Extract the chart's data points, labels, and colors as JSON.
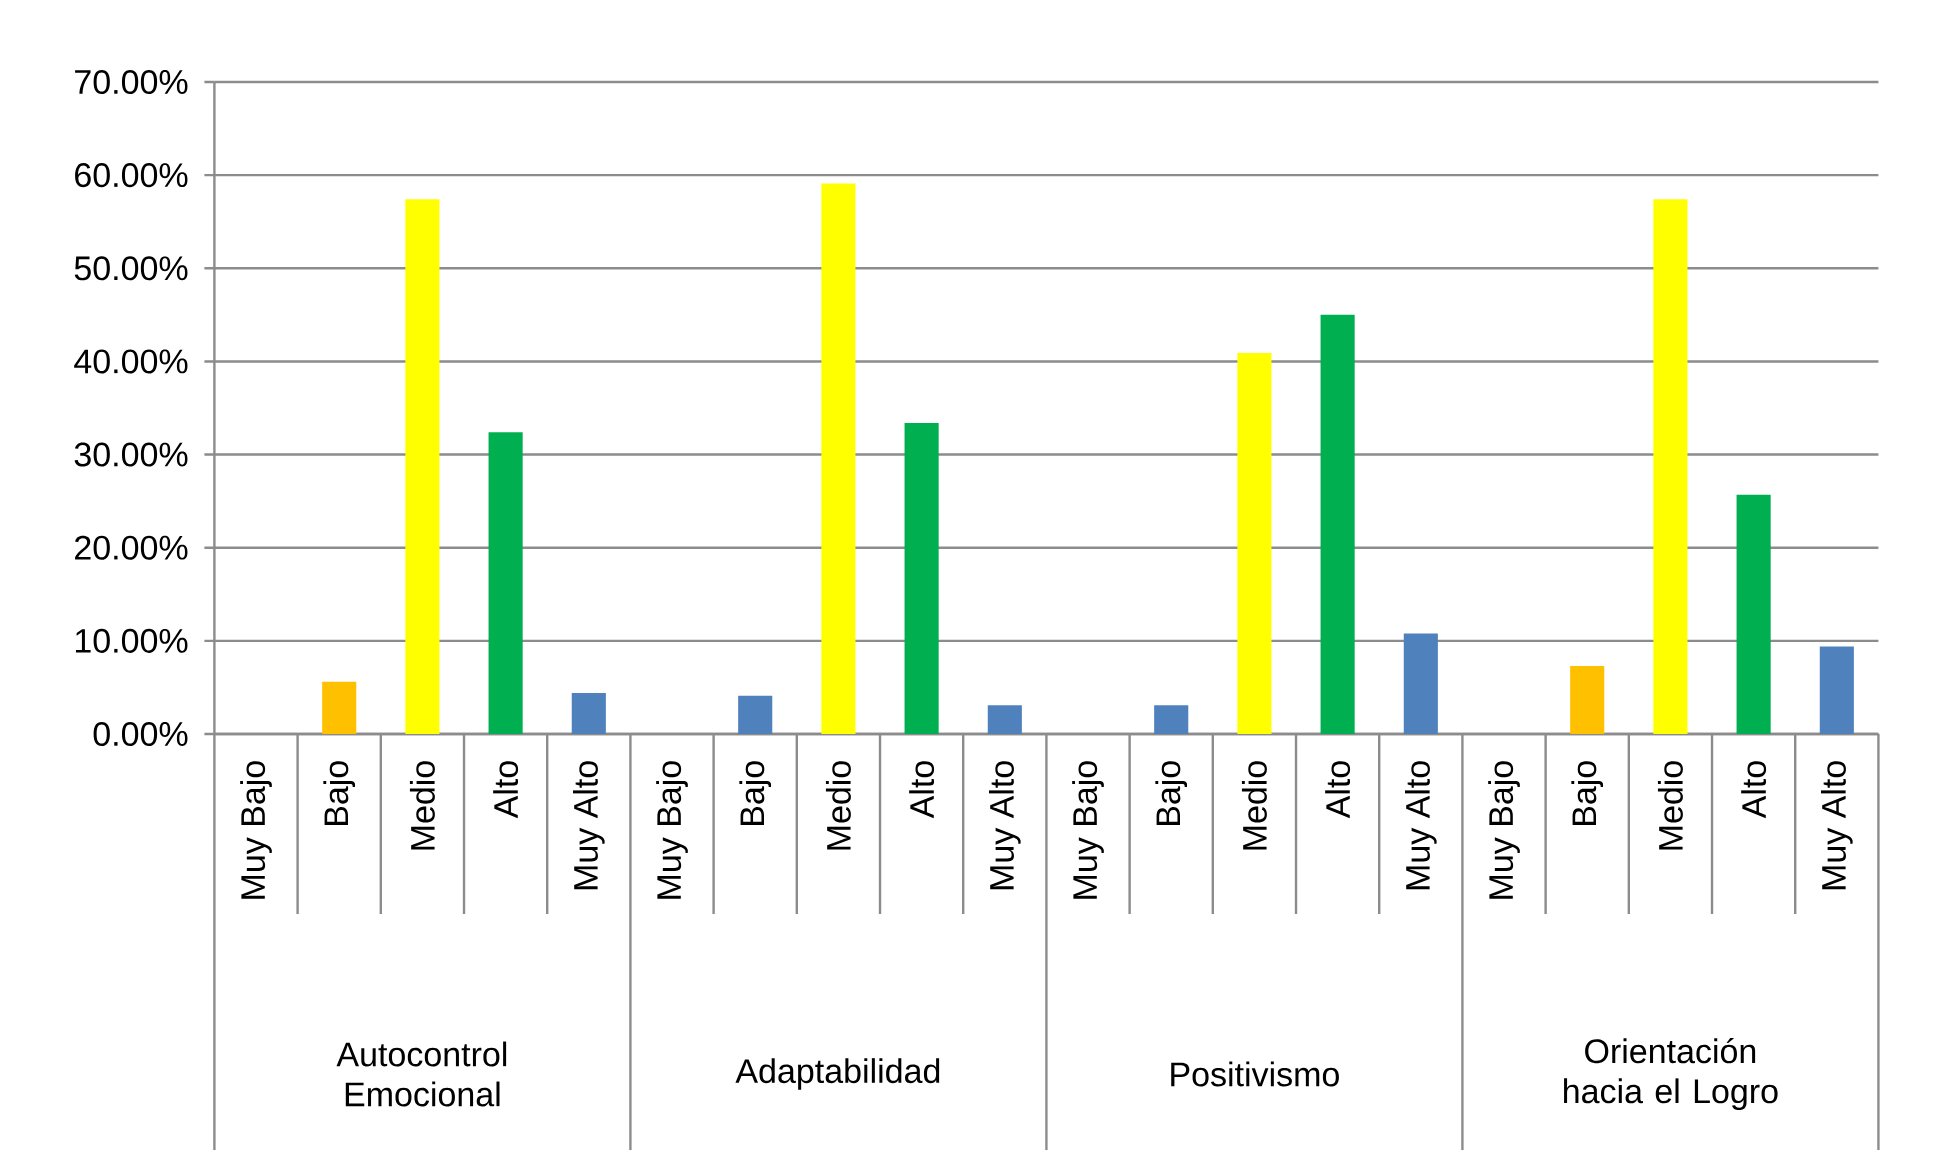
{
  "chart_data": {
    "type": "bar",
    "categories": [
      "Muy Bajo",
      "Bajo",
      "Medio",
      "Alto",
      "Muy Alto",
      "Muy Bajo",
      "Bajo",
      "Medio",
      "Alto",
      "Muy Alto",
      "Muy Bajo",
      "Bajo",
      "Medio",
      "Alto",
      "Muy Alto",
      "Muy Bajo",
      "Bajo",
      "Medio",
      "Alto",
      "Muy Alto"
    ],
    "values": [
      0,
      5.6,
      57.4,
      32.4,
      4.4,
      0,
      4.1,
      59.1,
      33.4,
      3.1,
      0,
      3.1,
      40.9,
      45.0,
      10.8,
      0,
      7.3,
      57.4,
      25.7,
      9.4
    ],
    "colors": [
      "#4f81bd",
      "#ffc000",
      "#ffff00",
      "#00b050",
      "#4f81bd",
      "#4f81bd",
      "#4f81bd",
      "#ffff00",
      "#00b050",
      "#4f81bd",
      "#4f81bd",
      "#4f81bd",
      "#ffff00",
      "#00b050",
      "#4f81bd",
      "#4f81bd",
      "#ffc000",
      "#ffff00",
      "#00b050",
      "#4f81bd"
    ],
    "annotations": [
      "Autocontrol Emocional",
      "Adaptabilidad",
      "Positivismo",
      "Orientación hacia el Logro"
    ],
    "ylim": [
      0,
      70
    ],
    "yticks": [
      {
        "value": 0,
        "label": "0.00%"
      },
      {
        "value": 10,
        "label": "10.00%"
      },
      {
        "value": 20,
        "label": "20.00%"
      },
      {
        "value": 30,
        "label": "30.00%"
      },
      {
        "value": 40,
        "label": "40.00%"
      },
      {
        "value": 50,
        "label": "50.00%"
      },
      {
        "value": 60,
        "label": "60.00%"
      },
      {
        "value": 70,
        "label": "70.00%"
      }
    ],
    "grid": "y"
  }
}
